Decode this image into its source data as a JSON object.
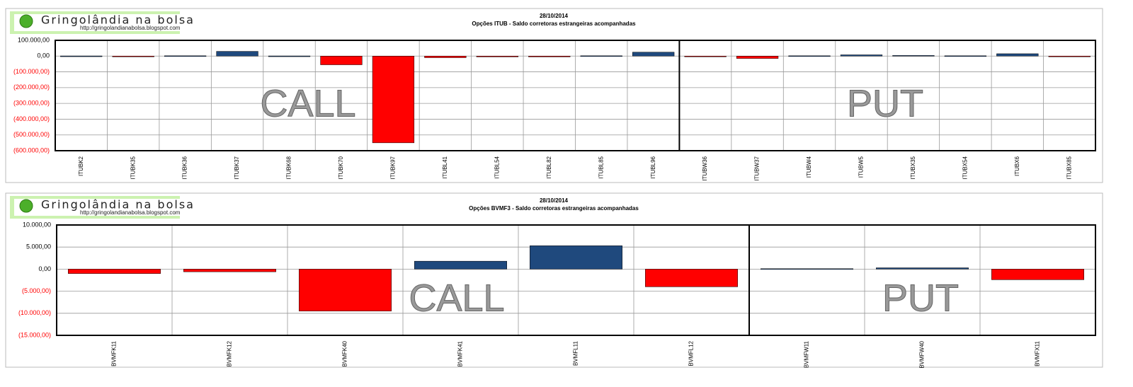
{
  "chart_data": [
    {
      "type": "bar",
      "logo_title": "Gringolândia na bolsa",
      "logo_url": "http://gringolandianabolsa.blogspot.com",
      "title": "28/10/2014",
      "subtitle": "Opções  ITUB - Saldo corretoras estrangeiras acompanhadas",
      "annotations": [
        "CALL",
        "PUT"
      ],
      "categories": [
        "ITUBK2",
        "ITUBK35",
        "ITUBK36",
        "ITUBK37",
        "ITUBK68",
        "ITUBK70",
        "ITUBK97",
        "ITUBL41",
        "ITUBL54",
        "ITUBL82",
        "ITUBL85",
        "ITUBL96",
        "ITUBW36",
        "ITUBW37",
        "ITUBW4",
        "ITUBW5",
        "ITUBX35",
        "ITUBX54",
        "ITUBX6",
        "ITUBX85"
      ],
      "values": [
        1000,
        -1000,
        2000,
        30000,
        1000,
        -55000,
        -550000,
        -10000,
        -5000,
        -5000,
        2000,
        25000,
        -2000,
        -15000,
        2000,
        8000,
        4000,
        2000,
        15000,
        -2000
      ],
      "positive_color": "#1f497d",
      "negative_color": "#ff0000",
      "ylim": [
        -600000,
        100000
      ],
      "yticks": [
        {
          "value": 100000,
          "label": "100.000,00"
        },
        {
          "value": 0,
          "label": "0,00"
        },
        {
          "value": -100000,
          "label": "(100.000,00)"
        },
        {
          "value": -200000,
          "label": "(200.000,00)"
        },
        {
          "value": -300000,
          "label": "(300.000,00)"
        },
        {
          "value": -400000,
          "label": "(400.000,00)"
        },
        {
          "value": -500000,
          "label": "(500.000,00)"
        },
        {
          "value": -600000,
          "label": "(600.000,00)"
        }
      ],
      "grid": true
    },
    {
      "type": "bar",
      "logo_title": "Gringolândia na bolsa",
      "logo_url": "http://gringolandianabolsa.blogspot.com",
      "title": "28/10/2014",
      "subtitle": "Opções  BVMF3 - Saldo corretoras estrangeiras acompanhadas",
      "annotations": [
        "CALL",
        "PUT"
      ],
      "categories": [
        "BVMFK11",
        "BVMFK12",
        "BVMFK40",
        "BVMFK41",
        "BVMFL11",
        "BVMFL12",
        "BVMFW11",
        "BVMFW40",
        "BVMFX11"
      ],
      "values": [
        -1000,
        -600,
        -9500,
        1800,
        5300,
        -4000,
        100,
        300,
        -2400
      ],
      "positive_color": "#1f497d",
      "negative_color": "#ff0000",
      "ylim": [
        -15000,
        10000
      ],
      "yticks": [
        {
          "value": 10000,
          "label": "10.000,00"
        },
        {
          "value": 5000,
          "label": "5.000,00"
        },
        {
          "value": 0,
          "label": "0,00"
        },
        {
          "value": -5000,
          "label": "(5.000,00)"
        },
        {
          "value": -10000,
          "label": "(10.000,00)"
        },
        {
          "value": -15000,
          "label": "(15.000,00)"
        }
      ],
      "grid": true
    }
  ]
}
